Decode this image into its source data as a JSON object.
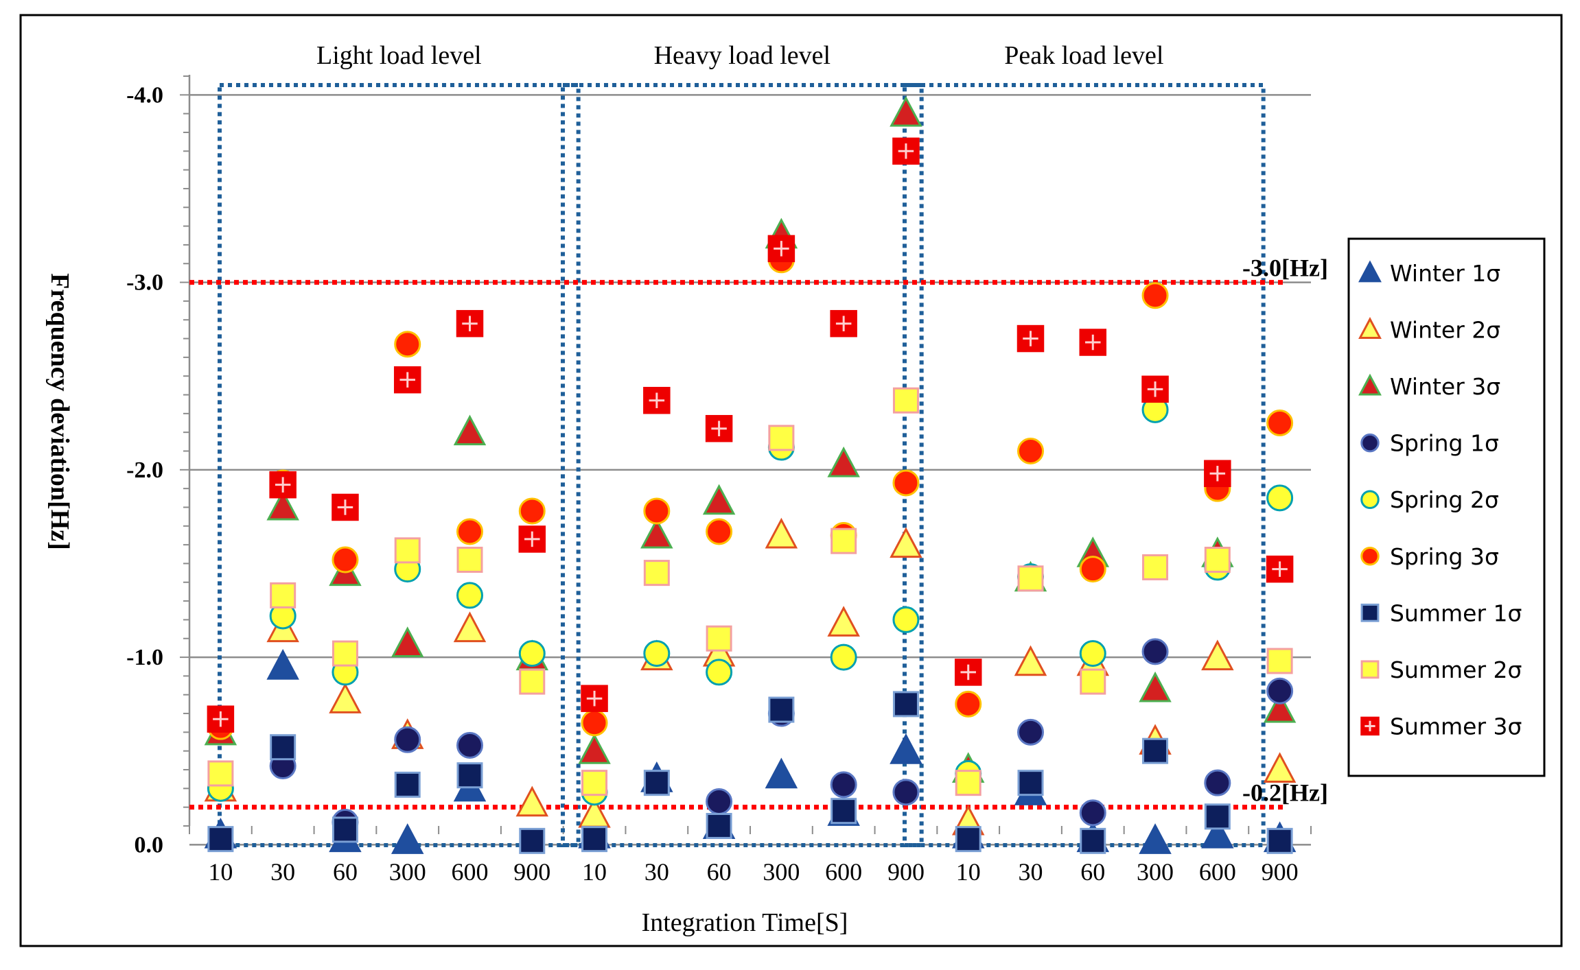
{
  "chart_data": {
    "type": "scatter",
    "ylabel": "Frequency deviation[Hz]",
    "xlabel": "Integration Time[S]",
    "ylim": [
      -0.1,
      -4.1
    ],
    "y_ticks": [
      {
        "value": -4.0,
        "label": "-4.0"
      },
      {
        "value": -3.0,
        "label": "-3.0"
      },
      {
        "value": -2.0,
        "label": "-2.0"
      },
      {
        "value": -1.0,
        "label": "-1.0"
      },
      {
        "value": 0.0,
        "label": "0.0"
      }
    ],
    "groups": [
      "Light load level",
      "Heavy load level",
      "Peak load level"
    ],
    "categories": [
      "10",
      "30",
      "60",
      "300",
      "600",
      "900"
    ],
    "reference_lines": [
      {
        "value": -3.0,
        "label": "-3.0[Hz]",
        "color": "#ff0000"
      },
      {
        "value": -0.2,
        "label": "-0.2[Hz]",
        "color": "#ff0000"
      }
    ],
    "series": [
      {
        "name": "Winter 1σ",
        "marker": "triangle",
        "fill": "#1f4e9e",
        "stroke": "#1f4e9e",
        "values": [
          [
            -0.05,
            -0.95,
            -0.03,
            -0.02,
            -0.3,
            null
          ],
          [
            -0.05,
            -0.35,
            -0.1,
            -0.37,
            -0.17,
            -0.5
          ],
          [
            -0.05,
            -0.28,
            -0.03,
            -0.02,
            -0.05,
            -0.03
          ]
        ]
      },
      {
        "name": "Winter 2σ",
        "marker": "triangle",
        "fill": "#ffff66",
        "stroke": "#e05020",
        "values": [
          [
            -0.3,
            -1.15,
            -0.77,
            -0.58,
            -1.15,
            -0.22
          ],
          [
            -0.16,
            -1.0,
            -1.02,
            -1.65,
            -1.18,
            -1.6
          ],
          [
            -0.12,
            -0.97,
            -0.97,
            -0.55,
            -1.0,
            -0.4
          ]
        ]
      },
      {
        "name": "Winter 3σ",
        "marker": "triangle",
        "fill": "#d42020",
        "stroke": "#4caf50",
        "values": [
          [
            -0.6,
            -1.8,
            -1.45,
            -1.07,
            -2.2,
            -1.0
          ],
          [
            -0.5,
            -1.65,
            -1.83,
            -3.25,
            -2.03,
            -3.9
          ],
          [
            -0.4,
            -1.42,
            -1.55,
            -0.83,
            -1.55,
            -0.72
          ]
        ]
      },
      {
        "name": "Spring 1σ",
        "marker": "circle",
        "fill": "#1a1a5e",
        "stroke": "#5b78c4",
        "values": [
          [
            null,
            -0.42,
            -0.12,
            -0.56,
            -0.53,
            null
          ],
          [
            null,
            null,
            -0.23,
            -0.7,
            -0.32,
            -0.28
          ],
          [
            null,
            -0.6,
            -0.17,
            -1.03,
            -0.33,
            -0.82
          ]
        ]
      },
      {
        "name": "Spring 2σ",
        "marker": "circle",
        "fill": "#ffff33",
        "stroke": "#00a0b0",
        "values": [
          [
            -0.3,
            -1.22,
            -0.92,
            -1.47,
            -1.33,
            -1.02
          ],
          [
            -0.28,
            -1.02,
            -0.92,
            -2.12,
            -1.0,
            -1.2
          ],
          [
            -0.38,
            -1.43,
            -1.02,
            -2.32,
            -1.48,
            -1.85
          ]
        ]
      },
      {
        "name": "Spring 3σ",
        "marker": "circle",
        "fill": "#ff2200",
        "stroke": "#ffc000",
        "values": [
          [
            -0.63,
            -1.93,
            -1.52,
            -2.67,
            -1.67,
            -1.78
          ],
          [
            -0.65,
            -1.78,
            -1.67,
            -3.12,
            -1.65,
            -1.93
          ],
          [
            -0.75,
            -2.1,
            -1.47,
            -2.93,
            -1.9,
            -2.25
          ]
        ]
      },
      {
        "name": "Summer 1σ",
        "marker": "square",
        "fill": "#0d1f5c",
        "stroke": "#7a9fd4",
        "values": [
          [
            -0.03,
            -0.52,
            -0.08,
            -0.32,
            -0.37,
            -0.02
          ],
          [
            -0.03,
            -0.33,
            -0.1,
            -0.72,
            -0.18,
            -0.75
          ],
          [
            -0.03,
            -0.33,
            -0.02,
            -0.5,
            -0.15,
            -0.02
          ]
        ]
      },
      {
        "name": "Summer 2σ",
        "marker": "square",
        "fill": "#ffff44",
        "stroke": "#f4a0a0",
        "values": [
          [
            -0.38,
            -1.33,
            -1.02,
            -1.57,
            -1.52,
            -0.87
          ],
          [
            -0.33,
            -1.45,
            -1.1,
            -2.17,
            -1.62,
            -2.37
          ],
          [
            -0.33,
            -1.42,
            -0.87,
            -1.48,
            -1.52,
            -0.98
          ]
        ]
      },
      {
        "name": "Summer 3σ",
        "marker": "cross-square",
        "fill": "#ee0000",
        "stroke": "#ffd0d0",
        "values": [
          [
            -0.67,
            -1.92,
            -1.8,
            -2.48,
            -2.78,
            -1.63
          ],
          [
            -0.78,
            -2.37,
            -2.22,
            -3.18,
            -2.78,
            -3.7
          ],
          [
            -0.92,
            -2.7,
            -2.68,
            -2.43,
            -1.98,
            -1.47
          ]
        ]
      }
    ]
  }
}
